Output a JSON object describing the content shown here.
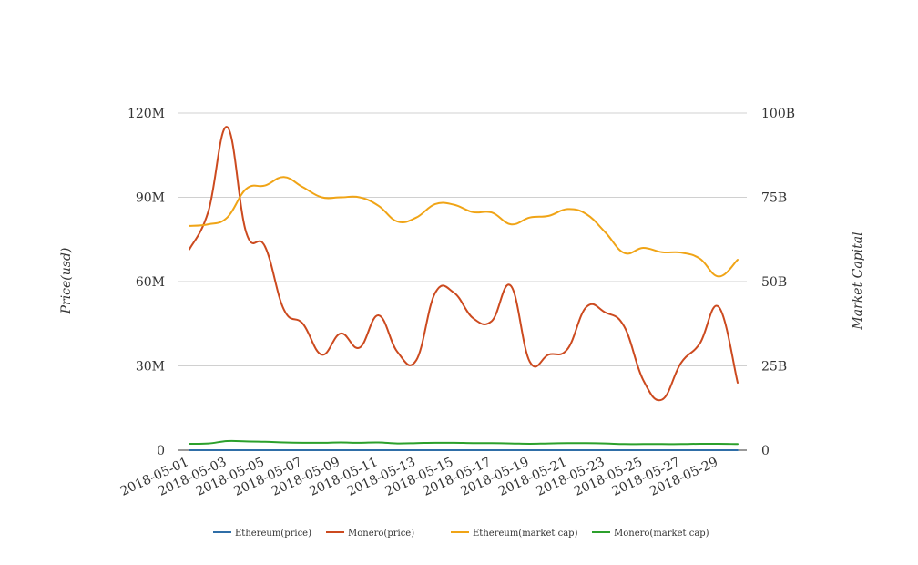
{
  "chart_data": {
    "type": "line",
    "title": "",
    "ylabel": "Price(usd)",
    "y2label": "Market Capital",
    "ylim": [
      0,
      120000000
    ],
    "y2lim": [
      0,
      100000000000
    ],
    "grid": true,
    "legend_position": "bottom",
    "y_ticks": [
      "0",
      "30M",
      "60M",
      "90M",
      "120M"
    ],
    "y2_ticks": [
      "0",
      "25B",
      "50B",
      "75B",
      "100B"
    ],
    "x_tick_labels": [
      "2018-05-01",
      "2018-05-03",
      "2018-05-05",
      "2018-05-07",
      "2018-05-09",
      "2018-05-11",
      "2018-05-13",
      "2018-05-15",
      "2018-05-17",
      "2018-05-19",
      "2018-05-21",
      "2018-05-23",
      "2018-05-25",
      "2018-05-27",
      "2018-05-29"
    ],
    "x": [
      "2018-05-01",
      "2018-05-02",
      "2018-05-03",
      "2018-05-04",
      "2018-05-05",
      "2018-05-06",
      "2018-05-07",
      "2018-05-08",
      "2018-05-09",
      "2018-05-10",
      "2018-05-11",
      "2018-05-12",
      "2018-05-13",
      "2018-05-14",
      "2018-05-15",
      "2018-05-16",
      "2018-05-17",
      "2018-05-18",
      "2018-05-19",
      "2018-05-20",
      "2018-05-21",
      "2018-05-22",
      "2018-05-23",
      "2018-05-24",
      "2018-05-25",
      "2018-05-26",
      "2018-05-27",
      "2018-05-28",
      "2018-05-29",
      "2018-05-30"
    ],
    "series": [
      {
        "name": "Ethereum(price)",
        "axis": "left",
        "color": "#2f6ea7",
        "values": [
          700,
          670,
          680,
          760,
          790,
          820,
          750,
          710,
          740,
          730,
          680,
          690,
          700,
          720,
          710,
          700,
          710,
          670,
          690,
          690,
          700,
          690,
          640,
          600,
          600,
          590,
          590,
          570,
          520,
          540
        ]
      },
      {
        "name": "Monero(price)",
        "axis": "left",
        "color": "#cc4a1f",
        "values": [
          71500000,
          85000000,
          115000000,
          77500000,
          72500000,
          50000000,
          45000000,
          34000000,
          41500000,
          36500000,
          48000000,
          35000000,
          32000000,
          56000000,
          56000000,
          47000000,
          46000000,
          58500000,
          31500000,
          34000000,
          36000000,
          51000000,
          49000000,
          44000000,
          25000000,
          18000000,
          31000000,
          38000000,
          51000000,
          24000000
        ]
      },
      {
        "name": "Ethereum(market cap)",
        "axis": "right",
        "color": "#f0a416",
        "values": [
          66500000000,
          67000000000,
          69000000000,
          77500000000,
          78500000000,
          81000000000,
          78000000000,
          75000000000,
          75000000000,
          75000000000,
          72500000000,
          67800000000,
          69000000000,
          73000000000,
          72800000000,
          70600000000,
          70500000000,
          67000000000,
          69000000000,
          69500000000,
          71500000000,
          70000000000,
          64600000000,
          58500000000,
          60000000000,
          58700000000,
          58600000000,
          56800000000,
          51500000000,
          56500000000
        ]
      },
      {
        "name": "Monero(market cap)",
        "axis": "right",
        "color": "#2ca02c",
        "values": [
          1900000000,
          2000000000,
          2700000000,
          2600000000,
          2500000000,
          2300000000,
          2200000000,
          2200000000,
          2300000000,
          2200000000,
          2300000000,
          2000000000,
          2100000000,
          2200000000,
          2200000000,
          2100000000,
          2100000000,
          2000000000,
          1900000000,
          2000000000,
          2100000000,
          2100000000,
          2000000000,
          1800000000,
          1800000000,
          1800000000,
          1800000000,
          1900000000,
          1900000000,
          1800000000
        ]
      }
    ]
  }
}
